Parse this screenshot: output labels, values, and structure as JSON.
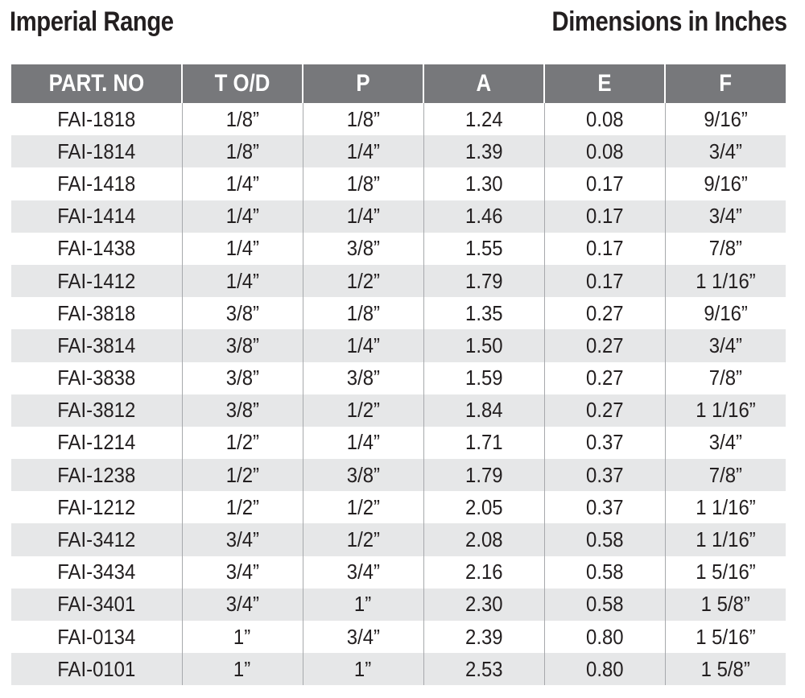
{
  "header": {
    "title_left": "Imperial Range",
    "title_right": "Dimensions in Inches"
  },
  "table": {
    "columns": [
      "PART. NO",
      "T O/D",
      "P",
      "A",
      "E",
      "F"
    ],
    "rows": [
      [
        "FAI-1818",
        "1/8”",
        "1/8”",
        "1.24",
        "0.08",
        "9/16”"
      ],
      [
        "FAI-1814",
        "1/8”",
        "1/4”",
        "1.39",
        "0.08",
        "3/4”"
      ],
      [
        "FAI-1418",
        "1/4”",
        "1/8”",
        "1.30",
        "0.17",
        "9/16”"
      ],
      [
        "FAI-1414",
        "1/4”",
        "1/4”",
        "1.46",
        "0.17",
        "3/4”"
      ],
      [
        "FAI-1438",
        "1/4”",
        "3/8”",
        "1.55",
        "0.17",
        "7/8”"
      ],
      [
        "FAI-1412",
        "1/4”",
        "1/2”",
        "1.79",
        "0.17",
        "1 1/16”"
      ],
      [
        "FAI-3818",
        "3/8”",
        "1/8”",
        "1.35",
        "0.27",
        "9/16”"
      ],
      [
        "FAI-3814",
        "3/8”",
        "1/4”",
        "1.50",
        "0.27",
        "3/4”"
      ],
      [
        "FAI-3838",
        "3/8”",
        "3/8”",
        "1.59",
        "0.27",
        "7/8”"
      ],
      [
        "FAI-3812",
        "3/8”",
        "1/2”",
        "1.84",
        "0.27",
        "1 1/16”"
      ],
      [
        "FAI-1214",
        "1/2”",
        "1/4”",
        "1.71",
        "0.37",
        "3/4”"
      ],
      [
        "FAI-1238",
        "1/2”",
        "3/8”",
        "1.79",
        "0.37",
        "7/8”"
      ],
      [
        "FAI-1212",
        "1/2”",
        "1/2”",
        "2.05",
        "0.37",
        "1 1/16”"
      ],
      [
        "FAI-3412",
        "3/4”",
        "1/2”",
        "2.08",
        "0.58",
        "1 1/16”"
      ],
      [
        "FAI-3434",
        "3/4”",
        "3/4”",
        "2.16",
        "0.58",
        "1 5/16”"
      ],
      [
        "FAI-3401",
        "3/4”",
        "1”",
        "2.30",
        "0.58",
        "1 5/8”"
      ],
      [
        "FAI-0134",
        "1”",
        "3/4”",
        "2.39",
        "0.80",
        "1 5/16”"
      ],
      [
        "FAI-0101",
        "1”",
        "1”",
        "2.53",
        "0.80",
        "1 5/8”"
      ]
    ]
  },
  "colors": {
    "header_bg": "#77787b",
    "header_text": "#ffffff",
    "stripe": "#e6e7e8",
    "text": "#231f20"
  }
}
